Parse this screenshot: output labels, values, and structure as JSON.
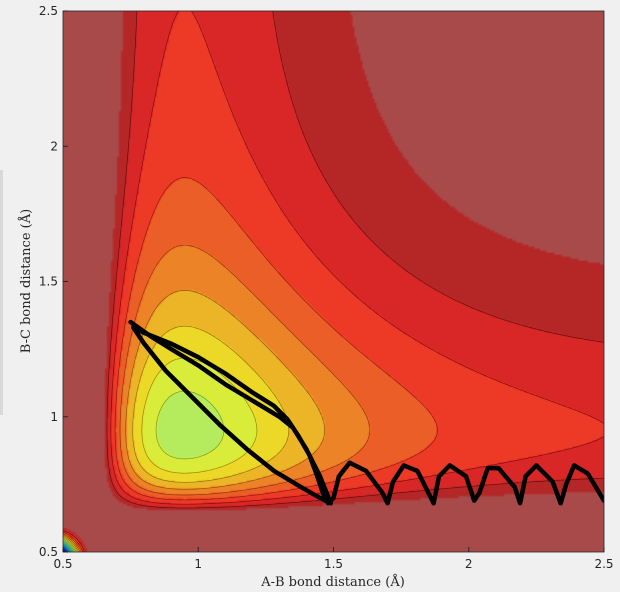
{
  "chart_data": {
    "type": "heatmap",
    "title": "",
    "xlabel": "A-B bond distance (Å)",
    "ylabel": "B-C bond distance (Å)",
    "xlim": [
      0.5,
      2.5
    ],
    "ylim": [
      0.5,
      2.5
    ],
    "xticks": [
      0.5,
      1,
      1.5,
      2,
      2.5
    ],
    "yticks": [
      0.5,
      1,
      1.5,
      2,
      2.5
    ],
    "xtick_labels": [
      "0.5",
      "1",
      "1.5",
      "2",
      "2.5"
    ],
    "ytick_labels": [
      "0.5",
      "1",
      "1.5",
      "2",
      "2.5"
    ],
    "colormap": "jet",
    "grid": false,
    "surface": {
      "kind": "LEPS-like potential energy surface",
      "bond_ab": {
        "De": 1.0,
        "beta": 2.5,
        "re": 0.95
      },
      "bond_bc": {
        "De": 1.0,
        "beta": 2.5,
        "re": 0.95
      },
      "energy_levels_shown": 20
    },
    "trajectory": {
      "color": "#000000",
      "points": [
        [
          0.75,
          1.35
        ],
        [
          0.82,
          1.3
        ],
        [
          0.9,
          1.25
        ],
        [
          1.0,
          1.19
        ],
        [
          1.1,
          1.12
        ],
        [
          1.2,
          1.06
        ],
        [
          1.3,
          1.0
        ],
        [
          1.35,
          0.96
        ],
        [
          1.4,
          0.88
        ],
        [
          1.45,
          0.78
        ],
        [
          1.49,
          0.68
        ],
        [
          1.45,
          0.7
        ],
        [
          1.38,
          0.74
        ],
        [
          1.28,
          0.8
        ],
        [
          1.18,
          0.88
        ],
        [
          1.08,
          0.97
        ],
        [
          0.98,
          1.07
        ],
        [
          0.88,
          1.17
        ],
        [
          0.8,
          1.27
        ],
        [
          0.76,
          1.33
        ],
        [
          0.8,
          1.31
        ],
        [
          0.9,
          1.27
        ],
        [
          1.0,
          1.22
        ],
        [
          1.1,
          1.16
        ],
        [
          1.2,
          1.09
        ],
        [
          1.28,
          1.04
        ],
        [
          1.33,
          0.99
        ],
        [
          1.37,
          0.93
        ],
        [
          1.41,
          0.86
        ],
        [
          1.44,
          0.78
        ],
        [
          1.46,
          0.72
        ],
        [
          1.48,
          0.68
        ],
        [
          1.5,
          0.7
        ],
        [
          1.52,
          0.78
        ],
        [
          1.56,
          0.83
        ],
        [
          1.62,
          0.8
        ],
        [
          1.68,
          0.72
        ],
        [
          1.7,
          0.68
        ],
        [
          1.72,
          0.76
        ],
        [
          1.76,
          0.82
        ],
        [
          1.81,
          0.8
        ],
        [
          1.86,
          0.7
        ],
        [
          1.87,
          0.68
        ],
        [
          1.89,
          0.78
        ],
        [
          1.93,
          0.82
        ],
        [
          1.99,
          0.78
        ],
        [
          2.02,
          0.69
        ],
        [
          2.04,
          0.72
        ],
        [
          2.07,
          0.81
        ],
        [
          2.11,
          0.81
        ],
        [
          2.17,
          0.74
        ],
        [
          2.19,
          0.68
        ],
        [
          2.21,
          0.78
        ],
        [
          2.25,
          0.82
        ],
        [
          2.31,
          0.76
        ],
        [
          2.34,
          0.68
        ],
        [
          2.36,
          0.75
        ],
        [
          2.39,
          0.82
        ],
        [
          2.44,
          0.79
        ],
        [
          2.5,
          0.69
        ]
      ]
    }
  }
}
